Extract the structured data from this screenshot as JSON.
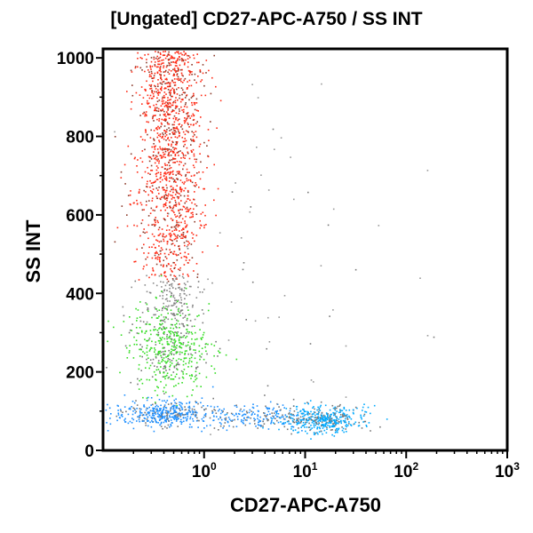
{
  "chart_data": {
    "type": "scatter",
    "title": "[Ungated] CD27-APC-A750 / SS INT",
    "xlabel": "CD27-APC-A750",
    "ylabel": "SS INT",
    "x_scale": "log",
    "xlim": [
      0.1,
      1000
    ],
    "ylim": [
      0,
      1023
    ],
    "x_ticks": [
      {
        "value": 1,
        "base": "10",
        "exp": "0"
      },
      {
        "value": 10,
        "base": "10",
        "exp": "1"
      },
      {
        "value": 100,
        "base": "10",
        "exp": "2"
      },
      {
        "value": 1000,
        "base": "10",
        "exp": "3"
      }
    ],
    "y_ticks": [
      "0",
      "200",
      "400",
      "600",
      "800",
      "1000"
    ],
    "y_tick_values": [
      0,
      200,
      400,
      600,
      800,
      1000
    ],
    "grid": false,
    "populations": [
      {
        "color": "#ff2a14",
        "x_center": 0.45,
        "x_log_sd": 0.16,
        "y_range": [
          440,
          1023
        ],
        "count": 1400
      },
      {
        "color": "#8a8a8a",
        "x_center": 0.5,
        "x_log_sd": 0.15,
        "y_range": [
          320,
          440
        ],
        "count": 150
      },
      {
        "color": "#33dd22",
        "x_center": 0.45,
        "x_log_sd": 0.2,
        "y_center": 265,
        "y_sd": 55,
        "count": 500
      },
      {
        "color": "#1e90ff",
        "x_center": 0.4,
        "x_log_sd": 0.25,
        "y_center": 95,
        "y_sd": 16,
        "count": 450
      },
      {
        "color": "#1e90ff",
        "x_center": 3.5,
        "x_log_sd": 0.25,
        "y_center": 88,
        "y_sd": 14,
        "count": 200
      },
      {
        "color": "#00aaff",
        "x_center": 15,
        "x_log_sd": 0.2,
        "y_center": 80,
        "y_sd": 18,
        "count": 450
      },
      {
        "color": "#999999",
        "x_center": 5,
        "x_log_sd": 0.6,
        "y_center": 500,
        "y_sd": 300,
        "count": 60
      }
    ]
  }
}
